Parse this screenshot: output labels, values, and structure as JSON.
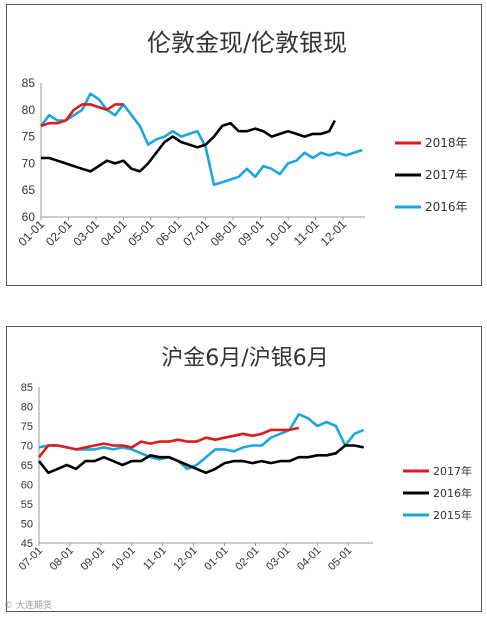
{
  "chart_data": [
    {
      "type": "line",
      "title": "伦敦金现/伦敦银现",
      "ylim": [
        60,
        85
      ],
      "yticks": [
        "60",
        "65",
        "70",
        "75",
        "80",
        "85"
      ],
      "categories": [
        "01-01",
        "02-01",
        "03-01",
        "04-01",
        "05-01",
        "06-01",
        "07-01",
        "08-01",
        "09-01",
        "10-01",
        "11-01",
        "12-01"
      ],
      "legend_position": "right",
      "grid": false,
      "series": [
        {
          "name": "2018年",
          "color": "#e0191c",
          "x": [
            0,
            0.3,
            0.6,
            0.9,
            1.2,
            1.5,
            1.8,
            2.1,
            2.4,
            2.7,
            3.0
          ],
          "values": [
            77,
            77.5,
            77.5,
            78,
            80,
            81,
            81,
            80.5,
            80,
            81,
            81
          ]
        },
        {
          "name": "2017年",
          "color": "#000000",
          "x": [
            0,
            0.3,
            0.6,
            0.9,
            1.2,
            1.5,
            1.8,
            2.1,
            2.4,
            2.7,
            3.0,
            3.3,
            3.6,
            3.9,
            4.2,
            4.5,
            4.8,
            5.1,
            5.4,
            5.7,
            6.0,
            6.3,
            6.6,
            6.9,
            7.2,
            7.5,
            7.8,
            8.1,
            8.4,
            8.7,
            9.0,
            9.3,
            9.6,
            9.9,
            10.2,
            10.5,
            10.7
          ],
          "values": [
            71,
            71,
            70.5,
            70,
            69.5,
            69,
            68.5,
            69.5,
            70.5,
            70,
            70.5,
            69,
            68.5,
            70,
            72,
            74,
            75,
            74,
            73.5,
            73,
            73.5,
            75,
            77,
            77.5,
            76,
            76,
            76.5,
            76,
            75,
            75.5,
            76,
            75.5,
            75,
            75.5,
            75.5,
            76,
            78
          ]
        },
        {
          "name": "2016年",
          "color": "#1aa7dc",
          "x": [
            0,
            0.3,
            0.6,
            0.9,
            1.2,
            1.5,
            1.8,
            2.1,
            2.4,
            2.7,
            3.0,
            3.3,
            3.6,
            3.9,
            4.2,
            4.5,
            4.8,
            5.1,
            5.4,
            5.7,
            6.0,
            6.3,
            6.6,
            6.9,
            7.2,
            7.5,
            7.8,
            8.1,
            8.4,
            8.7,
            9.0,
            9.3,
            9.6,
            9.9,
            10.2,
            10.5,
            10.8,
            11.1,
            11.4,
            11.7
          ],
          "values": [
            77,
            79,
            78,
            78,
            79,
            80,
            83,
            82,
            80,
            79,
            81,
            79,
            77,
            73.5,
            74.5,
            75,
            76,
            75,
            75.5,
            76,
            73,
            66,
            66.5,
            67,
            67.5,
            69,
            67.5,
            69.5,
            69,
            68,
            70,
            70.5,
            72,
            71,
            72,
            71.5,
            72,
            71.5,
            72,
            72.5
          ]
        }
      ]
    },
    {
      "type": "line",
      "title": "沪金6月/沪银6月",
      "ylim": [
        45,
        85
      ],
      "yticks": [
        "45",
        "50",
        "55",
        "60",
        "65",
        "70",
        "75",
        "80",
        "85"
      ],
      "categories": [
        "07-01",
        "08-01",
        "09-01",
        "10-01",
        "11-01",
        "12-01",
        "01-01",
        "02-01",
        "03-01",
        "04-01",
        "05-01"
      ],
      "legend_position": "right",
      "grid": false,
      "series": [
        {
          "name": "2017年",
          "color": "#e0191c",
          "x": [
            0,
            0.3,
            0.6,
            0.9,
            1.2,
            1.5,
            1.8,
            2.1,
            2.4,
            2.7,
            3.0,
            3.3,
            3.6,
            3.9,
            4.2,
            4.5,
            4.8,
            5.1,
            5.4,
            5.7,
            6.0,
            6.3,
            6.6,
            6.9,
            7.2,
            7.5,
            7.8,
            8.1,
            8.4
          ],
          "values": [
            67,
            70,
            70,
            69.5,
            69,
            69.5,
            70,
            70.5,
            70,
            70,
            69.5,
            71,
            70.5,
            71,
            71,
            71.5,
            71,
            71,
            72,
            71.5,
            72,
            72.5,
            73,
            72.5,
            73,
            74,
            74,
            74,
            74.5
          ]
        },
        {
          "name": "2016年",
          "color": "#000000",
          "x": [
            0,
            0.3,
            0.6,
            0.9,
            1.2,
            1.5,
            1.8,
            2.1,
            2.4,
            2.7,
            3.0,
            3.3,
            3.6,
            3.9,
            4.2,
            4.5,
            4.8,
            5.1,
            5.4,
            5.7,
            6.0,
            6.3,
            6.6,
            6.9,
            7.2,
            7.5,
            7.8,
            8.1,
            8.4,
            8.7,
            9.0,
            9.3,
            9.6,
            9.9,
            10.2,
            10.5
          ],
          "values": [
            66,
            63,
            64,
            65,
            64,
            66,
            66,
            67,
            66,
            65,
            66,
            66,
            67.5,
            67,
            67,
            66,
            65,
            64,
            63,
            64,
            65.5,
            66,
            66,
            65.5,
            66,
            65.5,
            66,
            66,
            67,
            67,
            67.5,
            67.5,
            68,
            70,
            70,
            69.5
          ]
        },
        {
          "name": "2015年",
          "color": "#1aa7dc",
          "x": [
            0,
            0.3,
            0.6,
            0.9,
            1.2,
            1.5,
            1.8,
            2.1,
            2.4,
            2.7,
            3.0,
            3.3,
            3.6,
            3.9,
            4.2,
            4.5,
            4.8,
            5.1,
            5.4,
            5.7,
            6.0,
            6.3,
            6.6,
            6.9,
            7.2,
            7.5,
            7.8,
            8.1,
            8.4,
            8.7,
            9.0,
            9.3,
            9.6,
            9.9,
            10.2,
            10.5
          ],
          "values": [
            69.5,
            70,
            70,
            69.5,
            69,
            69,
            69,
            69.5,
            69,
            69.5,
            69,
            68,
            67,
            66.5,
            67,
            66,
            64,
            65,
            67,
            69,
            69,
            68.5,
            69.5,
            70,
            70,
            72,
            73,
            74,
            78,
            77,
            75,
            76,
            75,
            70,
            73,
            74
          ]
        }
      ]
    }
  ],
  "watermark": "© 大连期货"
}
